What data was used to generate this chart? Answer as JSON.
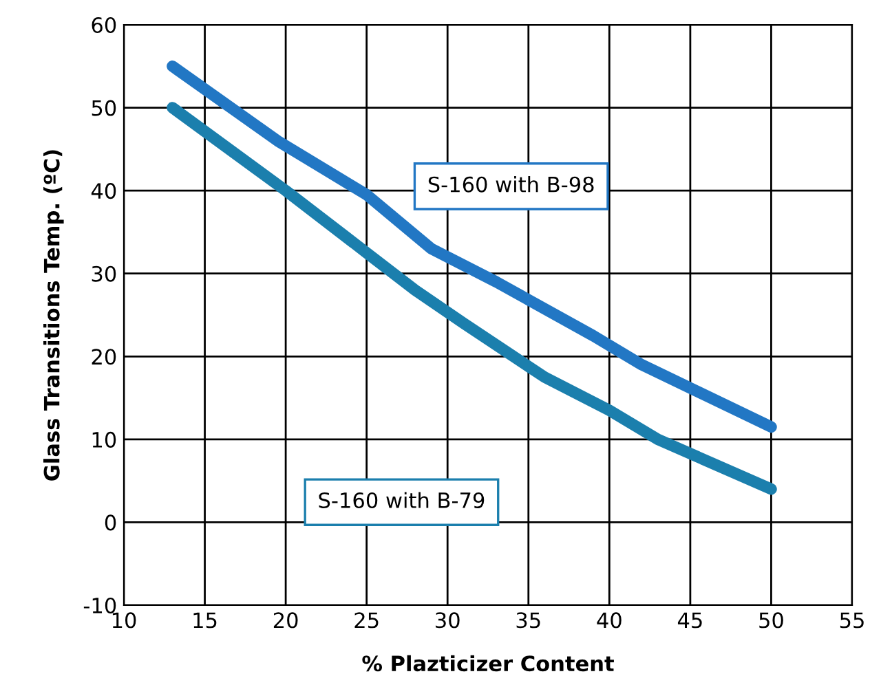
{
  "chart_data": {
    "type": "line",
    "xlabel": "% Plazticizer Content",
    "ylabel": "Glass Transitions Temp. (ºC)",
    "xlim": [
      10,
      55
    ],
    "xticks": [
      10,
      15,
      20,
      25,
      30,
      35,
      40,
      45,
      50,
      55
    ],
    "ylim": [
      -10,
      60
    ],
    "yticks": [
      -10,
      0,
      10,
      20,
      30,
      40,
      50,
      60
    ],
    "grid": true,
    "marker": "none",
    "line_style": "solid",
    "series": [
      {
        "name": "S-160 with B-98",
        "color": "#2277c4",
        "x": [
          13,
          19.5,
          25,
          29,
          33,
          39,
          42,
          50
        ],
        "values": [
          55,
          46,
          39.5,
          33,
          29,
          22.5,
          19,
          11.5
        ]
      },
      {
        "name": "S-160 with B-79",
        "color": "#1b7fad",
        "x": [
          13,
          20,
          25,
          28,
          31,
          36,
          40,
          43,
          50
        ],
        "values": [
          50,
          40,
          32.5,
          28,
          24,
          17.5,
          13.5,
          10,
          4
        ]
      }
    ]
  }
}
